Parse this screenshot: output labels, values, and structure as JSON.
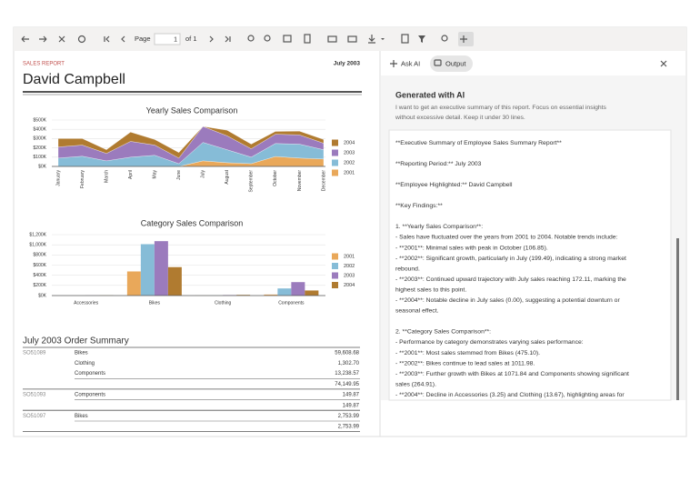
{
  "toolbar": {
    "page_label": "Page",
    "page_input": "1",
    "page_of": "of 1"
  },
  "report": {
    "kicker": "SALES REPORT",
    "date": "July 2003",
    "name": "David Campbell"
  },
  "chart_data": [
    {
      "type": "area",
      "stacked": true,
      "title": "Yearly Sales Comparison",
      "categories": [
        "January",
        "February",
        "March",
        "April",
        "May",
        "June",
        "July",
        "August",
        "September",
        "October",
        "November",
        "December"
      ],
      "series": [
        {
          "name": "2001",
          "color": "#e9a85a",
          "values": [
            0,
            0,
            0,
            0,
            0,
            0,
            60,
            40,
            30,
            107,
            90,
            80
          ]
        },
        {
          "name": "2002",
          "color": "#86bcd7",
          "values": [
            90,
            110,
            60,
            100,
            120,
            30,
            199,
            140,
            70,
            140,
            150,
            100
          ]
        },
        {
          "name": "2003",
          "color": "#9b7bbd",
          "values": [
            120,
            120,
            80,
            170,
            110,
            60,
            172,
            150,
            90,
            100,
            100,
            70
          ]
        },
        {
          "name": "2004",
          "color": "#b07b30",
          "values": [
            90,
            70,
            40,
            100,
            60,
            60,
            0,
            60,
            50,
            30,
            40,
            40
          ]
        }
      ],
      "ylim": [
        0,
        500
      ],
      "yticks": [
        {
          "value": 0,
          "label": "$0K"
        },
        {
          "value": 100,
          "label": "$100K"
        },
        {
          "value": 200,
          "label": "$200K"
        },
        {
          "value": 300,
          "label": "$300K"
        },
        {
          "value": 400,
          "label": "$400K"
        },
        {
          "value": 500,
          "label": "$500K"
        }
      ],
      "grid": true,
      "legend": "right"
    },
    {
      "type": "bar",
      "title": "Category Sales Comparison",
      "categories": [
        "Accessories",
        "Bikes",
        "Clothing",
        "Components"
      ],
      "series": [
        {
          "name": "2001",
          "color": "#e9a85a",
          "values": [
            0,
            475.1,
            1,
            20
          ]
        },
        {
          "name": "2002",
          "color": "#86bcd7",
          "values": [
            0,
            1011.98,
            2,
            140
          ]
        },
        {
          "name": "2003",
          "color": "#9b7bbd",
          "values": [
            2,
            1071.84,
            10,
            264.91
          ]
        },
        {
          "name": "2004",
          "color": "#b07b30",
          "values": [
            3.25,
            560,
            13.67,
            100
          ]
        }
      ],
      "ylim": [
        0,
        1200
      ],
      "yticks": [
        {
          "value": 0,
          "label": "$0K"
        },
        {
          "value": 200,
          "label": "$200K"
        },
        {
          "value": 400,
          "label": "$400K"
        },
        {
          "value": 600,
          "label": "$600K"
        },
        {
          "value": 800,
          "label": "$800K"
        },
        {
          "value": 1000,
          "label": "$1,000K"
        },
        {
          "value": 1200,
          "label": "$1,200K"
        }
      ],
      "grid": true,
      "legend": "right"
    }
  ],
  "order_summary": {
    "title": "July 2003 Order Summary",
    "orders": [
      {
        "id": "SO51089",
        "lines": [
          [
            "Bikes",
            "59,608.68"
          ],
          [
            "Clothing",
            "1,302.70"
          ],
          [
            "Components",
            "13,238.57"
          ]
        ],
        "total": "74,149.95"
      },
      {
        "id": "SO51093",
        "lines": [
          [
            "Components",
            "149.87"
          ]
        ],
        "total": "149.87"
      },
      {
        "id": "SO51097",
        "lines": [
          [
            "Bikes",
            "2,753.99"
          ]
        ],
        "total": "2,753.99"
      }
    ]
  },
  "ai_panel": {
    "tabs": [
      "Ask AI",
      "Output"
    ],
    "heading": "Generated with AI",
    "prompt": [
      "I want to get an executive summary of this report. Focus on essential insights",
      "without excessive detail. Keep it under 30 lines."
    ],
    "output": [
      [
        "**Executive Summary of Employee Sales Summary Report**"
      ],
      [
        "**Reporting Period:** July 2003"
      ],
      [
        "**Employee Highlighted:** David Campbell"
      ],
      [
        "**Key Findings:**"
      ],
      [
        "1. **Yearly Sales Comparison**:",
        "- Sales have fluctuated over the years from 2001 to 2004. Notable trends include:",
        "- **2001**: Minimal sales with peak in October (106.85).",
        "- **2002**: Significant growth, particularly in July (199.49), indicating a strong market",
        "rebound.",
        "- **2003**: Continued upward trajectory with July sales reaching 172.11, marking the",
        "highest sales to this point.",
        "- **2004**: Notable decline in July sales (0.00), suggesting a potential downturn or",
        "seasonal effect."
      ],
      [
        "2. **Category Sales Comparison**:",
        "- Performance by category demonstrates varying sales performance:",
        "- **2001**: Most sales stemmed from Bikes (475.10).",
        "- **2002**: Bikes continue to lead sales at 1011.98.",
        "- **2003**: Further growth with Bikes at 1071.84 and Components showing significant",
        "sales (264.91).",
        "- **2004**: Decline in Accessories (3.25) and Clothing (13.67), highlighting areas for"
      ]
    ]
  }
}
